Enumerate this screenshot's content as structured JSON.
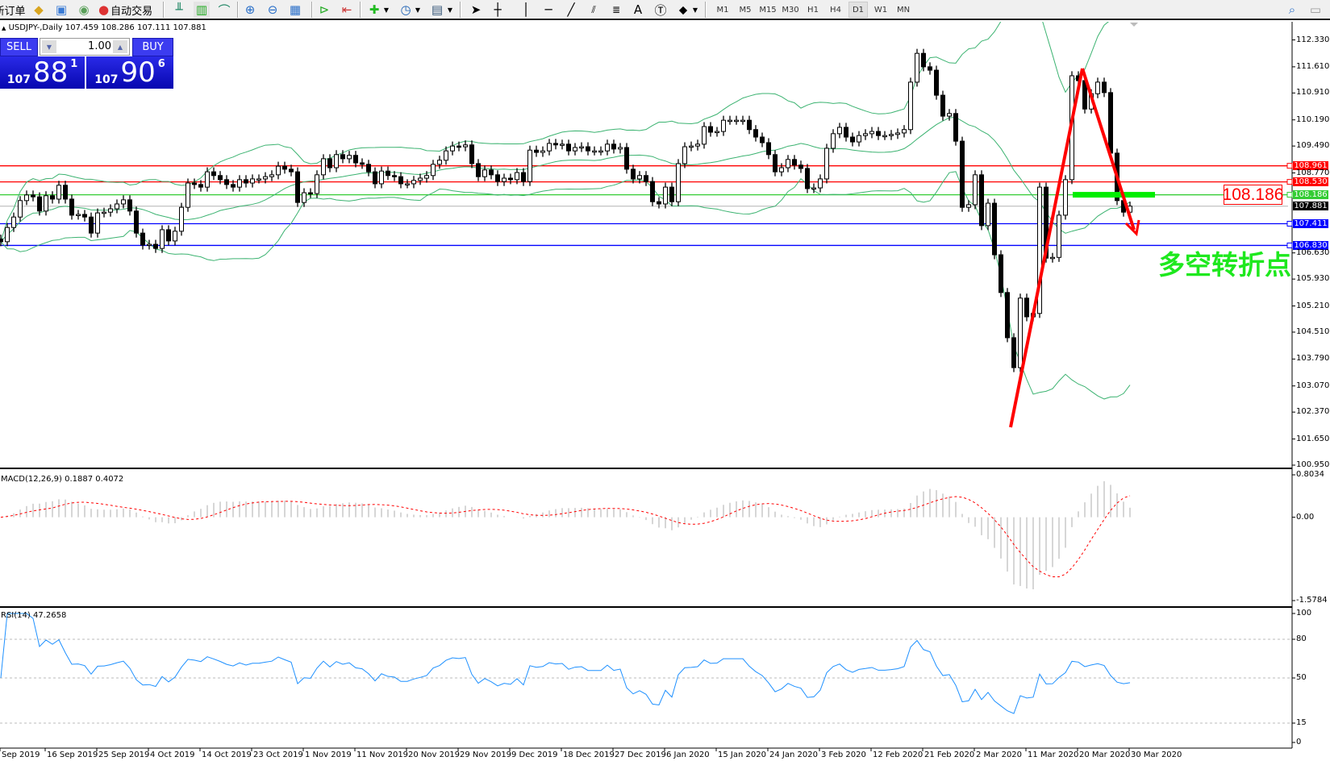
{
  "toolbar": {
    "new_order": "新订单",
    "auto_trading": "自动交易",
    "timeframes": [
      "M1",
      "M5",
      "M15",
      "M30",
      "H1",
      "H4",
      "D1",
      "W1",
      "MN"
    ],
    "active_timeframe": "D1"
  },
  "chart": {
    "symbol_line": "USDJPY-,Daily  107.459 108.286 107.111 107.881",
    "trade_panel": {
      "sell_label": "SELL",
      "buy_label": "BUY",
      "lot": "1.00",
      "sell_small": "107",
      "sell_big": "88",
      "sell_sup": "1",
      "buy_small": "107",
      "buy_big": "90",
      "buy_sup": "6"
    },
    "price_axis": [
      "112.330",
      "111.610",
      "110.910",
      "110.190",
      "109.490",
      "108.770",
      "106.630",
      "105.930",
      "105.210",
      "104.510",
      "103.790",
      "103.070",
      "102.370",
      "101.650",
      "100.950"
    ],
    "price_ylim": [
      100.95,
      112.33
    ],
    "levels": [
      {
        "price": "108.961",
        "color": "#ff0000"
      },
      {
        "price": "108.530",
        "color": "#ff0000"
      },
      {
        "price": "108.186",
        "color": "#33cc33"
      },
      {
        "price": "107.881",
        "color": "#000000",
        "line": "#c0c0c0"
      },
      {
        "price": "107.411",
        "color": "#0000ff"
      },
      {
        "price": "106.830",
        "color": "#0000ff"
      }
    ],
    "big_label": "108.186",
    "annotation": "多空转折点",
    "closes": [
      106.93,
      107.31,
      107.59,
      108.03,
      108.18,
      108.13,
      107.75,
      108.16,
      108.07,
      108.44,
      108.07,
      107.64,
      107.66,
      107.59,
      107.16,
      107.7,
      107.72,
      107.81,
      107.94,
      108.05,
      107.75,
      107.16,
      106.84,
      106.86,
      106.75,
      107.25,
      106.95,
      107.21,
      107.85,
      108.5,
      108.46,
      108.39,
      108.8,
      108.7,
      108.59,
      108.46,
      108.39,
      108.59,
      108.5,
      108.61,
      108.61,
      108.67,
      108.72,
      108.95,
      108.87,
      108.8,
      107.98,
      108.24,
      108.22,
      108.72,
      109.15,
      108.91,
      109.26,
      109.15,
      109.24,
      109.04,
      109.0,
      108.8,
      108.48,
      108.82,
      108.7,
      108.67,
      108.48,
      108.48,
      108.57,
      108.63,
      108.7,
      109.0,
      109.11,
      109.36,
      109.49,
      109.47,
      109.52,
      109.02,
      108.67,
      108.85,
      108.72,
      108.54,
      108.63,
      108.59,
      108.78,
      108.54,
      109.38,
      109.32,
      109.36,
      109.56,
      109.52,
      109.54,
      109.36,
      109.45,
      109.47,
      109.36,
      109.36,
      109.36,
      109.54,
      109.41,
      109.45,
      108.87,
      108.61,
      108.7,
      108.54,
      108.0,
      107.94,
      108.39,
      108.0,
      109.02,
      109.47,
      109.49,
      109.54,
      110.01,
      109.86,
      109.88,
      110.18,
      110.18,
      110.18,
      110.18,
      109.93,
      109.73,
      109.58,
      109.26,
      108.8,
      108.91,
      109.13,
      108.98,
      108.89,
      108.35,
      108.37,
      108.61,
      109.43,
      109.82,
      109.99,
      109.73,
      109.6,
      109.77,
      109.82,
      109.88,
      109.77,
      109.77,
      109.8,
      109.84,
      109.93,
      111.2,
      111.97,
      111.61,
      111.52,
      110.85,
      110.29,
      110.36,
      109.62,
      107.85,
      107.92,
      108.72,
      107.36,
      107.96,
      106.58,
      105.57,
      104.36,
      103.56,
      105.42,
      104.92,
      105.01,
      108.39,
      106.49,
      106.51,
      107.64,
      108.59,
      111.37,
      111.24,
      110.48,
      110.89,
      111.2,
      110.92,
      109.3,
      108.03,
      107.72,
      107.881
    ],
    "dates": [
      "Sep 2019",
      "16 Sep 2019",
      "25 Sep 2019",
      "4 Oct 2019",
      "14 Oct 2019",
      "23 Oct 2019",
      "1 Nov 2019",
      "11 Nov 2019",
      "20 Nov 2019",
      "29 Nov 2019",
      "9 Dec 2019",
      "18 Dec 2019",
      "27 Dec 2019",
      "6 Jan 2020",
      "15 Jan 2020",
      "24 Jan 2020",
      "3 Feb 2020",
      "12 Feb 2020",
      "21 Feb 2020",
      "2 Mar 2020",
      "11 Mar 2020",
      "20 Mar 2020",
      "30 Mar 2020"
    ]
  },
  "macd": {
    "label": "MACD(12,26,9) 0.1887 0.4072",
    "axis": [
      "0.8034",
      "0.00",
      "-1.5784"
    ],
    "ylim": [
      -1.5784,
      0.8034
    ]
  },
  "rsi": {
    "label": "RSI(14) 47.2658",
    "axis": [
      "100",
      "80",
      "50",
      "15",
      "0"
    ],
    "levels": [
      80,
      50,
      15
    ]
  },
  "colors": {
    "bands": "#3cb371",
    "signal": "#ff0000",
    "histogram": "#c0c0c0",
    "rsi": "#1e90ff",
    "arrow": "#ff0000",
    "support_bar": "#00ee00"
  }
}
